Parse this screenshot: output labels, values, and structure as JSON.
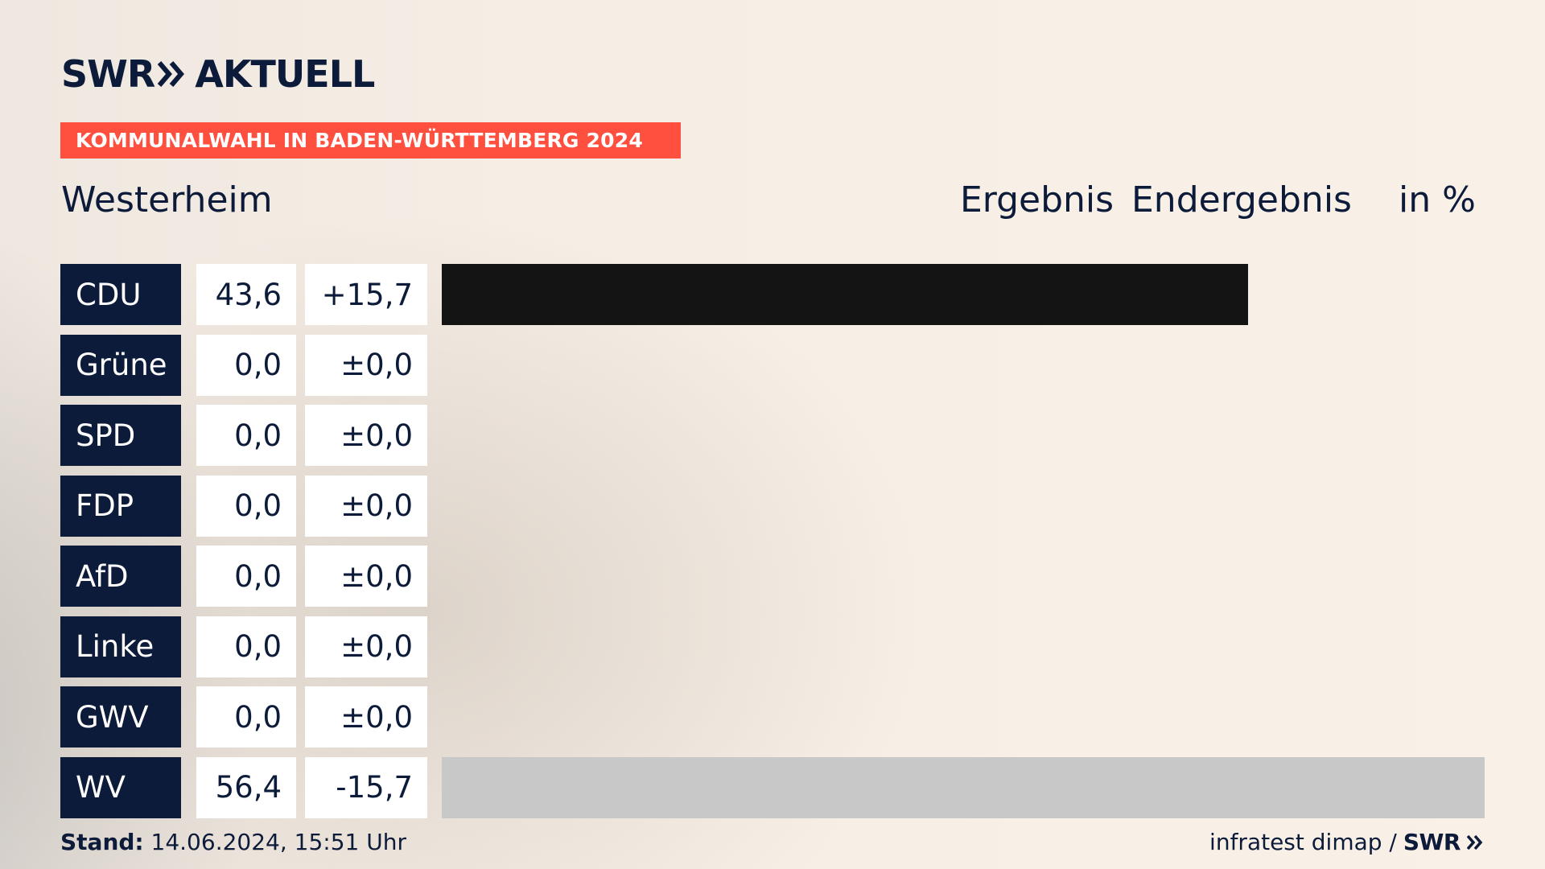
{
  "logo": {
    "brand": "SWR",
    "product": "AKTUELL"
  },
  "banner": "KOMMUNALWAHL IN BADEN-WÜRTTEMBERG 2024",
  "place": "Westerheim",
  "header": {
    "col1": "Ergebnis",
    "col2": "Endergebnis",
    "unit": "in %"
  },
  "chart_data": {
    "type": "bar",
    "title": "KOMMUNALWAHL IN BADEN-WÜRTTEMBERG 2024",
    "subtitle": "Westerheim",
    "unit": "%",
    "xlim": [
      0,
      56.4
    ],
    "rows": [
      {
        "party": "CDU",
        "value": "43,6",
        "diff": "+15,7",
        "num": 43.6,
        "color": "#141414"
      },
      {
        "party": "Grüne",
        "value": "0,0",
        "diff": "±0,0",
        "num": 0.0,
        "color": "#1e9a3a"
      },
      {
        "party": "SPD",
        "value": "0,0",
        "diff": "±0,0",
        "num": 0.0,
        "color": "#e3000f"
      },
      {
        "party": "FDP",
        "value": "0,0",
        "diff": "±0,0",
        "num": 0.0,
        "color": "#ffed00"
      },
      {
        "party": "AfD",
        "value": "0,0",
        "diff": "±0,0",
        "num": 0.0,
        "color": "#009ee0"
      },
      {
        "party": "Linke",
        "value": "0,0",
        "diff": "±0,0",
        "num": 0.0,
        "color": "#be3075"
      },
      {
        "party": "GWV",
        "value": "0,0",
        "diff": "±0,0",
        "num": 0.0,
        "color": "#c8c8c8"
      },
      {
        "party": "WV",
        "value": "56,4",
        "diff": "-15,7",
        "num": 56.4,
        "color": "#c8c8c8"
      }
    ]
  },
  "footer": {
    "stand_label": "Stand:",
    "stand_value": "14.06.2024, 15:51 Uhr",
    "source": "infratest dimap /",
    "brand": "SWR"
  }
}
